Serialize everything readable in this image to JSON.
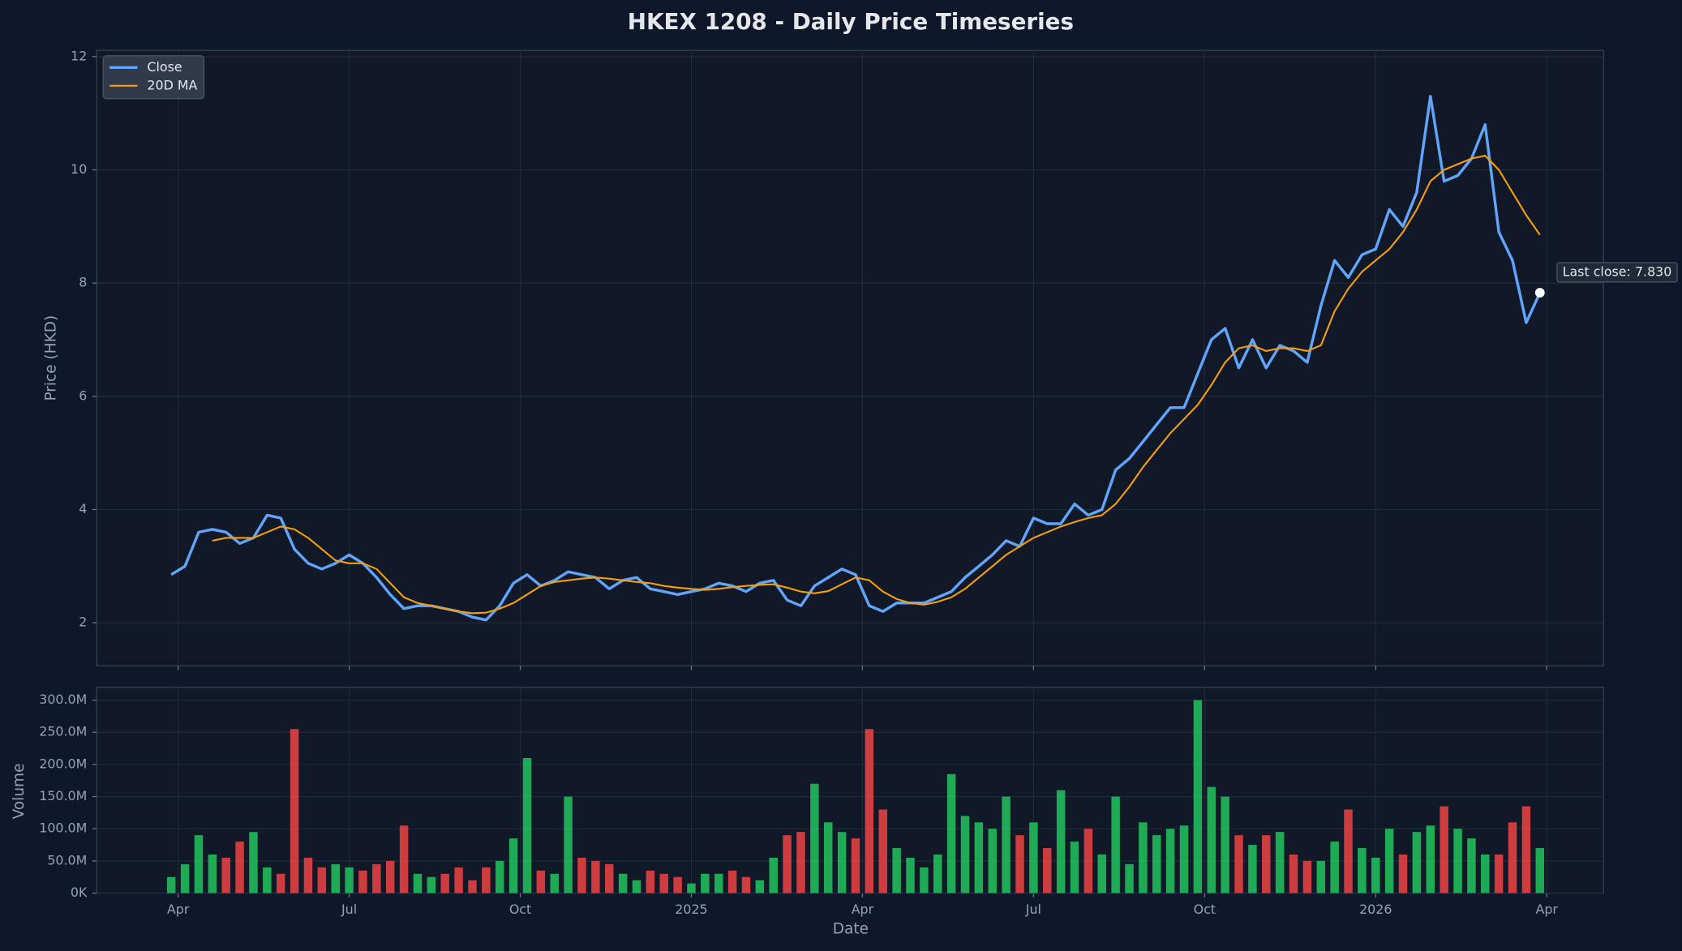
{
  "chart_data": [
    {
      "type": "line",
      "title": "HKEX 1208 - Daily Price Timeseries",
      "ylabel": "Price (HKD)",
      "x": [
        2024.24,
        2024.26,
        2024.28,
        2024.3,
        2024.32,
        2024.34,
        2024.36,
        2024.38,
        2024.4,
        2024.42,
        2024.44,
        2024.46,
        2024.48,
        2024.5,
        2024.52,
        2024.54,
        2024.56,
        2024.58,
        2024.6,
        2024.62,
        2024.64,
        2024.66,
        2024.68,
        2024.7,
        2024.72,
        2024.74,
        2024.76,
        2024.78,
        2024.8,
        2024.82,
        2024.84,
        2024.86,
        2024.88,
        2024.9,
        2024.92,
        2024.94,
        2024.96,
        2024.98,
        2025.0,
        2025.02,
        2025.04,
        2025.06,
        2025.08,
        2025.1,
        2025.12,
        2025.14,
        2025.16,
        2025.18,
        2025.2,
        2025.22,
        2025.24,
        2025.26,
        2025.28,
        2025.3,
        2025.32,
        2025.34,
        2025.36,
        2025.38,
        2025.4,
        2025.42,
        2025.44,
        2025.46,
        2025.48,
        2025.5,
        2025.52,
        2025.54,
        2025.56,
        2025.58,
        2025.6,
        2025.62,
        2025.64,
        2025.66,
        2025.68,
        2025.7,
        2025.72,
        2025.74,
        2025.76,
        2025.78,
        2025.8,
        2025.82,
        2025.84,
        2025.86,
        2025.88,
        2025.9,
        2025.92,
        2025.94,
        2025.96,
        2025.98,
        2026.0,
        2026.02,
        2026.04,
        2026.06,
        2026.08,
        2026.1,
        2026.12,
        2026.14,
        2026.16,
        2026.18,
        2026.2,
        2026.22,
        2026.24
      ],
      "series": [
        {
          "name": "Close",
          "color": "#60a5fa",
          "values": [
            2.85,
            3.0,
            3.6,
            3.65,
            3.6,
            3.4,
            3.5,
            3.9,
            3.85,
            3.3,
            3.05,
            2.95,
            3.05,
            3.2,
            3.05,
            2.8,
            2.5,
            2.25,
            2.3,
            2.3,
            2.25,
            2.2,
            2.1,
            2.05,
            2.3,
            2.7,
            2.85,
            2.65,
            2.75,
            2.9,
            2.85,
            2.8,
            2.6,
            2.75,
            2.8,
            2.6,
            2.55,
            2.5,
            2.55,
            2.6,
            2.7,
            2.65,
            2.55,
            2.7,
            2.75,
            2.4,
            2.3,
            2.65,
            2.8,
            2.95,
            2.85,
            2.3,
            2.2,
            2.35,
            2.35,
            2.35,
            2.45,
            2.55,
            2.8,
            3.0,
            3.2,
            3.45,
            3.35,
            3.85,
            3.75,
            3.75,
            4.1,
            3.9,
            4.0,
            4.7,
            4.9,
            5.2,
            5.5,
            5.8,
            5.8,
            6.4,
            7.0,
            7.2,
            6.5,
            7.0,
            6.5,
            6.9,
            6.8,
            6.6,
            7.6,
            8.4,
            8.1,
            8.5,
            8.6,
            9.3,
            9.0,
            9.6,
            11.3,
            9.8,
            9.9,
            10.2,
            10.8,
            8.9,
            8.4,
            7.3,
            7.83
          ]
        },
        {
          "name": "20D MA",
          "color": "#f59e0b",
          "values": [
            null,
            null,
            null,
            3.45,
            3.5,
            3.5,
            3.5,
            3.6,
            3.7,
            3.65,
            3.5,
            3.3,
            3.1,
            3.05,
            3.05,
            2.95,
            2.7,
            2.45,
            2.35,
            2.3,
            2.25,
            2.2,
            2.17,
            2.18,
            2.25,
            2.35,
            2.5,
            2.65,
            2.72,
            2.75,
            2.78,
            2.8,
            2.78,
            2.75,
            2.72,
            2.7,
            2.65,
            2.62,
            2.6,
            2.58,
            2.6,
            2.63,
            2.65,
            2.67,
            2.68,
            2.62,
            2.55,
            2.52,
            2.56,
            2.68,
            2.8,
            2.75,
            2.55,
            2.42,
            2.35,
            2.32,
            2.37,
            2.45,
            2.6,
            2.8,
            3.0,
            3.2,
            3.35,
            3.5,
            3.6,
            3.7,
            3.78,
            3.85,
            3.9,
            4.1,
            4.4,
            4.75,
            5.05,
            5.35,
            5.6,
            5.85,
            6.2,
            6.6,
            6.85,
            6.9,
            6.8,
            6.85,
            6.85,
            6.8,
            6.9,
            7.5,
            7.9,
            8.2,
            8.4,
            8.6,
            8.9,
            9.3,
            9.8,
            10.0,
            10.1,
            10.2,
            10.25,
            10.0,
            9.6,
            9.2,
            8.85
          ]
        }
      ],
      "xlim": [
        2024.131,
        2026.333
      ],
      "ylim": [
        1.24,
        12.11
      ],
      "yticks": [
        2,
        4,
        6,
        8,
        10,
        12
      ],
      "grid": true,
      "legend": "upper left",
      "annotation": "Last close: 7.830"
    },
    {
      "type": "bar",
      "xlabel": "Date",
      "ylabel": "Volume",
      "values": [
        25000000,
        45000000,
        90000000,
        60000000,
        55000000,
        80000000,
        95000000,
        40000000,
        30000000,
        255000000,
        55000000,
        40000000,
        45000000,
        40000000,
        35000000,
        45000000,
        50000000,
        105000000,
        30000000,
        25000000,
        30000000,
        40000000,
        20000000,
        40000000,
        50000000,
        85000000,
        210000000,
        35000000,
        30000000,
        150000000,
        55000000,
        50000000,
        45000000,
        30000000,
        20000000,
        35000000,
        30000000,
        25000000,
        15000000,
        30000000,
        30000000,
        35000000,
        25000000,
        20000000,
        55000000,
        90000000,
        95000000,
        170000000,
        110000000,
        95000000,
        85000000,
        255000000,
        130000000,
        70000000,
        55000000,
        40000000,
        60000000,
        185000000,
        120000000,
        110000000,
        100000000,
        150000000,
        90000000,
        110000000,
        70000000,
        160000000,
        80000000,
        100000000,
        60000000,
        150000000,
        45000000,
        110000000,
        90000000,
        100000000,
        105000000,
        300000000,
        165000000,
        150000000,
        90000000,
        75000000,
        90000000,
        95000000,
        60000000,
        50000000,
        50000000,
        80000000,
        130000000,
        70000000,
        55000000,
        100000000,
        60000000,
        95000000,
        105000000,
        135000000,
        100000000,
        85000000,
        60000000,
        60000000,
        110000000,
        135000000,
        70000000
      ],
      "up_color": "#22c55e",
      "down_color": "#ef4444",
      "xlim": [
        2024.131,
        2026.333
      ],
      "xticks": [
        {
          "value": 2024.25,
          "label": "Apr"
        },
        {
          "value": 2024.5,
          "label": "Jul"
        },
        {
          "value": 2024.75,
          "label": "Oct"
        },
        2025,
        {
          "value": 2025.25,
          "label": "Apr"
        },
        {
          "value": 2025.5,
          "label": "Jul"
        },
        {
          "value": 2025.75,
          "label": "Oct"
        },
        2026,
        {
          "value": 2026.25,
          "label": "Apr"
        }
      ],
      "ylim": [
        0,
        320000000
      ],
      "yticks": [
        {
          "value": 0,
          "label": "0K"
        },
        {
          "value": 50000000,
          "label": "50.0M"
        },
        {
          "value": 100000000,
          "label": "100.0M"
        },
        {
          "value": 150000000,
          "label": "150.0M"
        },
        {
          "value": 200000000,
          "label": "200.0M"
        },
        {
          "value": 250000000,
          "label": "250.0M"
        },
        {
          "value": 300000000,
          "label": "300.0M"
        }
      ],
      "grid": true
    }
  ]
}
